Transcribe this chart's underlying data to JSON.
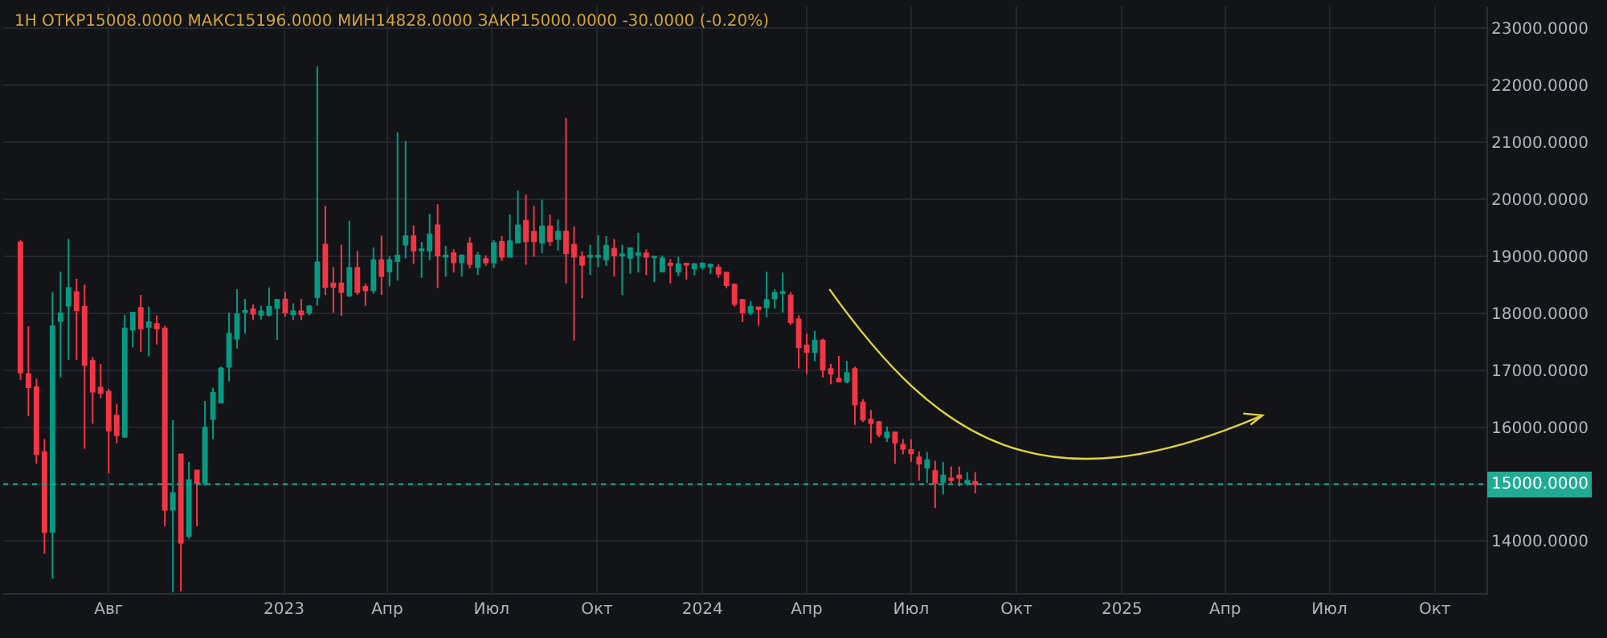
{
  "chart_data": {
    "type": "candlestick",
    "title": "1H ОТКР15008.0000 МАКС15196.0000 МИН14828.0000 ЗАКР15000.0000 -30.0000 (-0.20%)",
    "x": [
      "2022-05-16",
      "2022-05-23",
      "2022-05-30",
      "2022-06-06",
      "2022-06-13",
      "2022-06-20",
      "2022-06-27",
      "2022-07-04",
      "2022-07-11",
      "2022-07-18",
      "2022-07-25",
      "2022-08-01",
      "2022-08-08",
      "2022-08-15",
      "2022-08-22",
      "2022-08-29",
      "2022-09-05",
      "2022-09-12",
      "2022-09-19",
      "2022-09-26",
      "2022-10-03",
      "2022-10-10",
      "2022-10-17",
      "2022-10-24",
      "2022-10-31",
      "2022-11-07",
      "2022-11-14",
      "2022-11-21",
      "2022-11-28",
      "2022-12-05",
      "2022-12-12",
      "2022-12-19",
      "2022-12-26",
      "2023-01-02",
      "2023-01-09",
      "2023-01-16",
      "2023-01-23",
      "2023-01-30",
      "2023-02-06",
      "2023-02-13",
      "2023-02-20",
      "2023-02-27",
      "2023-03-06",
      "2023-03-13",
      "2023-03-20",
      "2023-03-27",
      "2023-04-03",
      "2023-04-10",
      "2023-04-17",
      "2023-04-24",
      "2023-05-01",
      "2023-05-08",
      "2023-05-15",
      "2023-05-22",
      "2023-05-29",
      "2023-06-05",
      "2023-06-12",
      "2023-06-19",
      "2023-06-26",
      "2023-07-03",
      "2023-07-10",
      "2023-07-17",
      "2023-07-24",
      "2023-07-31",
      "2023-08-07",
      "2023-08-14",
      "2023-08-21",
      "2023-08-28",
      "2023-09-04",
      "2023-09-11",
      "2023-09-18",
      "2023-09-25",
      "2023-10-02",
      "2023-10-09",
      "2023-10-16",
      "2023-10-23",
      "2023-10-30",
      "2023-11-06",
      "2023-11-13",
      "2023-11-20",
      "2023-11-27",
      "2023-12-04",
      "2023-12-11",
      "2023-12-18",
      "2023-12-25",
      "2024-01-01",
      "2024-01-08",
      "2024-01-15",
      "2024-01-22",
      "2024-01-29",
      "2024-02-05",
      "2024-02-12",
      "2024-02-19",
      "2024-02-26",
      "2024-03-04",
      "2024-03-11",
      "2024-03-18",
      "2024-03-25",
      "2024-04-01",
      "2024-04-08",
      "2024-04-15",
      "2024-04-22",
      "2024-04-29",
      "2024-05-06",
      "2024-05-13",
      "2024-05-20",
      "2024-05-27",
      "2024-06-03",
      "2024-06-10",
      "2024-06-17",
      "2024-06-24",
      "2024-07-01",
      "2024-07-08",
      "2024-07-15",
      "2024-07-22",
      "2024-07-29",
      "2024-08-05",
      "2024-08-12",
      "2024-08-19",
      "2024-08-26"
    ],
    "ohlc": [
      [
        19240,
        19280,
        16830,
        16960
      ],
      [
        16930,
        17770,
        16190,
        16700
      ],
      [
        16700,
        16850,
        15360,
        15530
      ],
      [
        15560,
        15790,
        13780,
        14160
      ],
      [
        14160,
        18370,
        13340,
        17770
      ],
      [
        17860,
        18730,
        16870,
        18000
      ],
      [
        18130,
        19300,
        17180,
        18440
      ],
      [
        18370,
        18600,
        17180,
        18050
      ],
      [
        18110,
        18500,
        15620,
        17090
      ],
      [
        17160,
        17230,
        16060,
        16620
      ],
      [
        16690,
        17110,
        16510,
        16600
      ],
      [
        16620,
        16670,
        15190,
        15940
      ],
      [
        16200,
        16410,
        15720,
        15860
      ],
      [
        15830,
        17970,
        15810,
        17730
      ],
      [
        17710,
        18020,
        17400,
        18010
      ],
      [
        18090,
        18320,
        17320,
        17730
      ],
      [
        17760,
        18110,
        17240,
        17840
      ],
      [
        17810,
        17960,
        17450,
        17730
      ],
      [
        17730,
        17780,
        14260,
        14550
      ],
      [
        14550,
        16120,
        13100,
        14840
      ],
      [
        15520,
        15520,
        13120,
        13970
      ],
      [
        14090,
        15390,
        14040,
        15070
      ],
      [
        15240,
        15240,
        14260,
        15020
      ],
      [
        15020,
        16460,
        14970,
        15990
      ],
      [
        16140,
        16690,
        15790,
        16600
      ],
      [
        16430,
        17060,
        16430,
        17030
      ],
      [
        17060,
        18010,
        16800,
        17640
      ],
      [
        17550,
        18420,
        17380,
        17980
      ],
      [
        18020,
        18250,
        17640,
        18040
      ],
      [
        18070,
        18150,
        17880,
        17990
      ],
      [
        17970,
        18130,
        17890,
        18030
      ],
      [
        17970,
        18450,
        17940,
        18110
      ],
      [
        18090,
        18250,
        17530,
        18230
      ],
      [
        18240,
        18370,
        17940,
        18010
      ],
      [
        17980,
        18170,
        17880,
        18030
      ],
      [
        18030,
        18250,
        17880,
        17980
      ],
      [
        18010,
        18140,
        17960,
        18120
      ],
      [
        18280,
        22330,
        18130,
        18890
      ],
      [
        19200,
        19880,
        18320,
        18460
      ],
      [
        18520,
        18810,
        18010,
        18460
      ],
      [
        18520,
        19200,
        17950,
        18370
      ],
      [
        18310,
        19620,
        18280,
        18790
      ],
      [
        18790,
        19090,
        18320,
        18370
      ],
      [
        18460,
        18520,
        18130,
        18400
      ],
      [
        18400,
        19150,
        18340,
        18930
      ],
      [
        18930,
        19360,
        18320,
        18650
      ],
      [
        18730,
        19000,
        18470,
        18930
      ],
      [
        18910,
        21170,
        18570,
        19010
      ],
      [
        19200,
        21020,
        18960,
        19350
      ],
      [
        19350,
        19540,
        18860,
        19100
      ],
      [
        19100,
        19250,
        18620,
        19120
      ],
      [
        19100,
        19740,
        18930,
        19380
      ],
      [
        19540,
        19910,
        18440,
        19010
      ],
      [
        18990,
        19180,
        18640,
        19010
      ],
      [
        19050,
        19120,
        18710,
        18890
      ],
      [
        18890,
        19030,
        18640,
        19010
      ],
      [
        19220,
        19330,
        18780,
        18860
      ],
      [
        18810,
        19070,
        18670,
        19010
      ],
      [
        18950,
        19010,
        18830,
        18890
      ],
      [
        18890,
        19280,
        18790,
        19230
      ],
      [
        19250,
        19350,
        18910,
        18990
      ],
      [
        18990,
        19730,
        18990,
        19260
      ],
      [
        19240,
        20150,
        19220,
        19540
      ],
      [
        19620,
        20080,
        18850,
        19260
      ],
      [
        19430,
        19880,
        18990,
        19260
      ],
      [
        19240,
        19990,
        19050,
        19520
      ],
      [
        19520,
        19730,
        19180,
        19260
      ],
      [
        19300,
        19640,
        19100,
        19430
      ],
      [
        19430,
        21420,
        18520,
        19050
      ],
      [
        19200,
        19520,
        17520,
        18990
      ],
      [
        18990,
        19080,
        18260,
        18850
      ],
      [
        18990,
        19200,
        18670,
        19010
      ],
      [
        18990,
        19370,
        18810,
        19010
      ],
      [
        18940,
        19350,
        18830,
        19180
      ],
      [
        19130,
        19300,
        18640,
        19010
      ],
      [
        19010,
        19200,
        18320,
        19030
      ],
      [
        18970,
        19140,
        18690,
        19140
      ],
      [
        19020,
        19410,
        18710,
        19050
      ],
      [
        19050,
        19120,
        18670,
        18990
      ],
      [
        18980,
        18990,
        18540,
        18990
      ],
      [
        18730,
        19010,
        18720,
        18960
      ],
      [
        18870,
        18950,
        18520,
        18840
      ],
      [
        18730,
        18990,
        18650,
        18860
      ],
      [
        18870,
        18870,
        18590,
        18850
      ],
      [
        18780,
        18880,
        18660,
        18860
      ],
      [
        18810,
        18890,
        18760,
        18870
      ],
      [
        18820,
        18870,
        18690,
        18850
      ],
      [
        18800,
        18860,
        18620,
        18690
      ],
      [
        18710,
        18710,
        18440,
        18490
      ],
      [
        18500,
        18520,
        18110,
        18160
      ],
      [
        18230,
        18250,
        17840,
        18010
      ],
      [
        18010,
        18210,
        17960,
        18110
      ],
      [
        18100,
        18100,
        17780,
        18070
      ],
      [
        18100,
        18730,
        17930,
        18230
      ],
      [
        18260,
        18420,
        18080,
        18360
      ],
      [
        18350,
        18710,
        18010,
        18370
      ],
      [
        18310,
        18370,
        17790,
        17840
      ],
      [
        17890,
        17960,
        17030,
        17400
      ],
      [
        17430,
        17640,
        16930,
        17320
      ],
      [
        17320,
        17690,
        17160,
        17520
      ],
      [
        17520,
        17550,
        16870,
        17010
      ],
      [
        17020,
        17110,
        16750,
        16940
      ],
      [
        16850,
        17250,
        16790,
        16800
      ],
      [
        16800,
        17160,
        16770,
        16950
      ],
      [
        17020,
        17060,
        16040,
        16400
      ],
      [
        16430,
        16490,
        16090,
        16130
      ],
      [
        16130,
        16300,
        15720,
        16070
      ],
      [
        16090,
        16110,
        15820,
        15870
      ],
      [
        15820,
        16010,
        15740,
        15910
      ],
      [
        15910,
        15910,
        15360,
        15730
      ],
      [
        15690,
        15790,
        15520,
        15620
      ],
      [
        15600,
        15790,
        15390,
        15540
      ],
      [
        15470,
        15570,
        15060,
        15360
      ],
      [
        15290,
        15560,
        15020,
        15420
      ],
      [
        15230,
        15410,
        14580,
        15020
      ],
      [
        15040,
        15390,
        14820,
        15150
      ],
      [
        15100,
        15310,
        15020,
        15070
      ],
      [
        15150,
        15310,
        14960,
        15110
      ],
      [
        15020,
        15210,
        14970,
        15060
      ],
      [
        15040,
        15210,
        14840,
        15000
      ]
    ],
    "xlim": [
      "2022-05-01",
      "2025-11-15"
    ],
    "xticks": [
      {
        "value": "2022-08-01",
        "label": "Авг"
      },
      {
        "value": "2023-01-01",
        "label": "2023"
      },
      {
        "value": "2023-04-01",
        "label": "Апр"
      },
      {
        "value": "2023-07-01",
        "label": "Июл"
      },
      {
        "value": "2023-10-01",
        "label": "Окт"
      },
      {
        "value": "2024-01-01",
        "label": "2024"
      },
      {
        "value": "2024-04-01",
        "label": "Апр"
      },
      {
        "value": "2024-07-01",
        "label": "Июл"
      },
      {
        "value": "2024-10-01",
        "label": "Окт"
      },
      {
        "value": "2025-01-01",
        "label": "2025"
      },
      {
        "value": "2025-04-01",
        "label": "Апр"
      },
      {
        "value": "2025-07-01",
        "label": "Июл"
      },
      {
        "value": "2025-10-01",
        "label": "Окт"
      }
    ],
    "ylim": [
      13090,
      23380
    ],
    "yticks": [
      {
        "value": 14000,
        "label": "14000.0000"
      },
      {
        "value": 15000,
        "label": null
      },
      {
        "value": 16000,
        "label": "16000.0000"
      },
      {
        "value": 17000,
        "label": "17000.0000"
      },
      {
        "value": 18000,
        "label": "18000.0000"
      },
      {
        "value": 19000,
        "label": "19000.0000"
      },
      {
        "value": 20000,
        "label": "20000.0000"
      },
      {
        "value": 21000,
        "label": "21000.0000"
      },
      {
        "value": 22000,
        "label": "22000.0000"
      },
      {
        "value": 23000,
        "label": "23000.0000"
      }
    ],
    "ref_lines": [
      {
        "axis": "y",
        "value": 15000,
        "label": "15000.0000",
        "color": "#22ab94",
        "line_style": "dotted"
      }
    ],
    "grid": true
  }
}
